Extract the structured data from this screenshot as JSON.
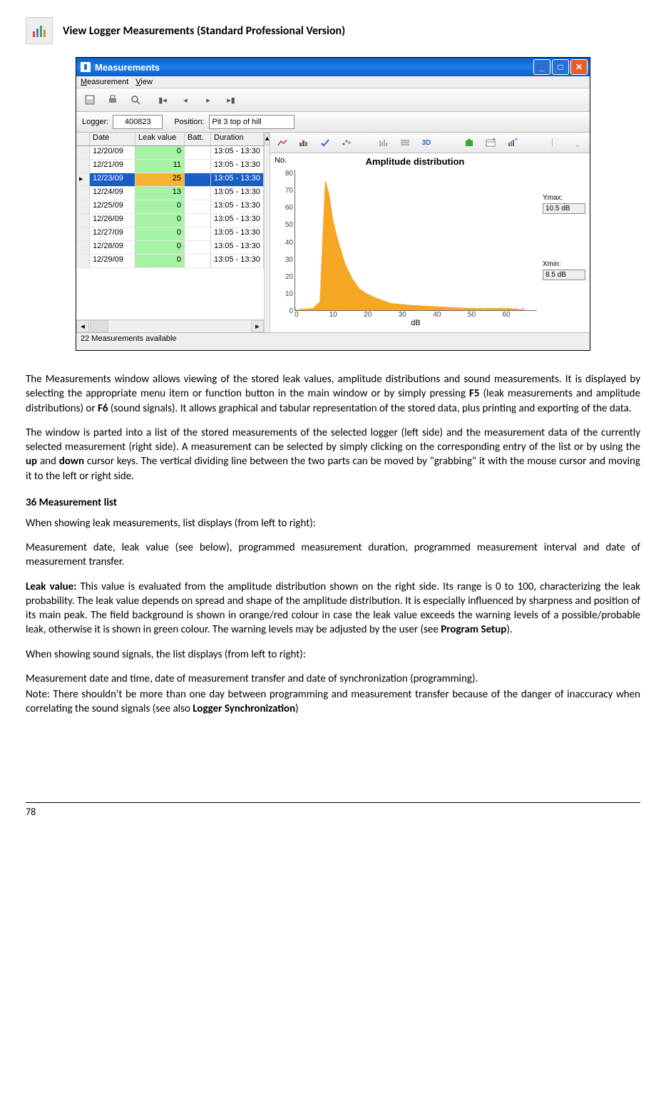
{
  "doc": {
    "title": "View Logger Measurements (Standard Professional Version)",
    "page_number": "78"
  },
  "window": {
    "title": "Measurements",
    "menus": [
      "Measurement",
      "View"
    ],
    "logger_label": "Logger:",
    "logger_value": "400823",
    "position_label": "Position:",
    "position_value": "Pit 3 top of hill",
    "status": "22 Measurements available"
  },
  "grid": {
    "columns": [
      "Date",
      "Leak value",
      "Batt.",
      "Duration"
    ],
    "rows": [
      {
        "date": "12/20/09",
        "leak": "0",
        "batt": "",
        "dur": "13:05 - 13:30",
        "sel": false
      },
      {
        "date": "12/21/09",
        "leak": "11",
        "batt": "",
        "dur": "13:05 - 13:30",
        "sel": false
      },
      {
        "date": "12/23/09",
        "leak": "25",
        "batt": "",
        "dur": "13:05 - 13:30",
        "sel": true
      },
      {
        "date": "12/24/09",
        "leak": "13",
        "batt": "",
        "dur": "13:05 - 13:30",
        "sel": false
      },
      {
        "date": "12/25/09",
        "leak": "0",
        "batt": "",
        "dur": "13:05 - 13:30",
        "sel": false
      },
      {
        "date": "12/26/09",
        "leak": "0",
        "batt": "",
        "dur": "13:05 - 13:30",
        "sel": false
      },
      {
        "date": "12/27/09",
        "leak": "0",
        "batt": "",
        "dur": "13:05 - 13:30",
        "sel": false
      },
      {
        "date": "12/28/09",
        "leak": "0",
        "batt": "",
        "dur": "13:05 - 13:30",
        "sel": false
      },
      {
        "date": "12/29/09",
        "leak": "0",
        "batt": "",
        "dur": "13:05 - 13:30",
        "sel": false
      }
    ],
    "leak_green_bg": "#a6f3a6",
    "leak_orange_bg": "#f5b431",
    "selection_bg": "#1a5dc7"
  },
  "chart": {
    "no_label": "No.",
    "title": "Amplitude distribution",
    "y_ticks": [
      "80",
      "70",
      "60",
      "50",
      "40",
      "30",
      "20",
      "10",
      "0"
    ],
    "x_ticks": [
      "0",
      "10",
      "20",
      "30",
      "40",
      "50",
      "60"
    ],
    "x_label": "dB",
    "ymax_label": "Ymax:",
    "ymax_value": "10.5 dB",
    "xmin_label": "Xmin:",
    "xmin_value": "8.5 dB",
    "fill_color": "#f5a623",
    "series": [
      {
        "x": 0,
        "y": 0
      },
      {
        "x": 5,
        "y": 1
      },
      {
        "x": 7,
        "y": 5
      },
      {
        "x": 8.5,
        "y": 78
      },
      {
        "x": 9.5,
        "y": 70
      },
      {
        "x": 10.5,
        "y": 55
      },
      {
        "x": 12,
        "y": 42
      },
      {
        "x": 14,
        "y": 28
      },
      {
        "x": 16,
        "y": 19
      },
      {
        "x": 18,
        "y": 13
      },
      {
        "x": 20,
        "y": 10
      },
      {
        "x": 23,
        "y": 7
      },
      {
        "x": 27,
        "y": 4
      },
      {
        "x": 32,
        "y": 3
      },
      {
        "x": 40,
        "y": 2
      },
      {
        "x": 50,
        "y": 1
      },
      {
        "x": 60,
        "y": 1
      },
      {
        "x": 65,
        "y": 0
      }
    ],
    "xlim": [
      0,
      68
    ],
    "ylim": [
      0,
      85
    ]
  },
  "text": {
    "p1a": "The Measurements window allows viewing of the stored leak values, amplitude distributions and sound measurements. It is displayed by selecting the appropriate menu item or function button in the main window or by simply pressing ",
    "p1b": " (leak measurements and amplitude distributions) or ",
    "p1c": " (sound signals). It allows graphical and tabular representation of the stored data, plus printing and exporting of the data.",
    "f5": "F5",
    "f6": "F6",
    "p2a": "The window is parted into a list of the stored measurements of the selected logger (left side) and the measurement data of the currently selected measurement (right side). A measurement can be selected by simply clicking on the corresponding entry of the list or by using the ",
    "up": "up",
    "p2b": " and ",
    "down": "down",
    "p2c": " cursor keys. The vertical dividing line between the two parts can be moved by \"grabbing\" it with the mouse cursor and moving it to the left or right side.",
    "section": "36  Measurement list",
    "p3": "When showing leak measurements, list displays (from left to right):",
    "p4": "Measurement date, leak value (see below), programmed measurement duration, programmed measurement interval and date of measurement transfer.",
    "leak_label": "Leak value:",
    "p5a": " This value is evaluated from the amplitude distribution shown on the right side. Its range is 0 to 100, characterizing the leak probability. The leak value depends on spread and shape of the amplitude distribution. It is especially influenced by sharpness and position of its main peak. The field background is shown in orange/red colour in case the leak value exceeds the warning levels of a possible/probable leak, otherwise it is shown in green colour. The warning levels may be adjusted by the user (see ",
    "prog_setup": "Program Setup",
    "p5b": ").",
    "p6": "When showing sound signals, the list displays (from left to right):",
    "p7": "Measurement date and time, date of measurement transfer and date of synchronization (programming).",
    "p8a": "Note: There shouldn't be more than one day between programming and measurement transfer because of the danger of inaccuracy when correlating the sound signals (see also ",
    "logger_sync": "Logger Synchronization",
    "p8b": ")"
  }
}
